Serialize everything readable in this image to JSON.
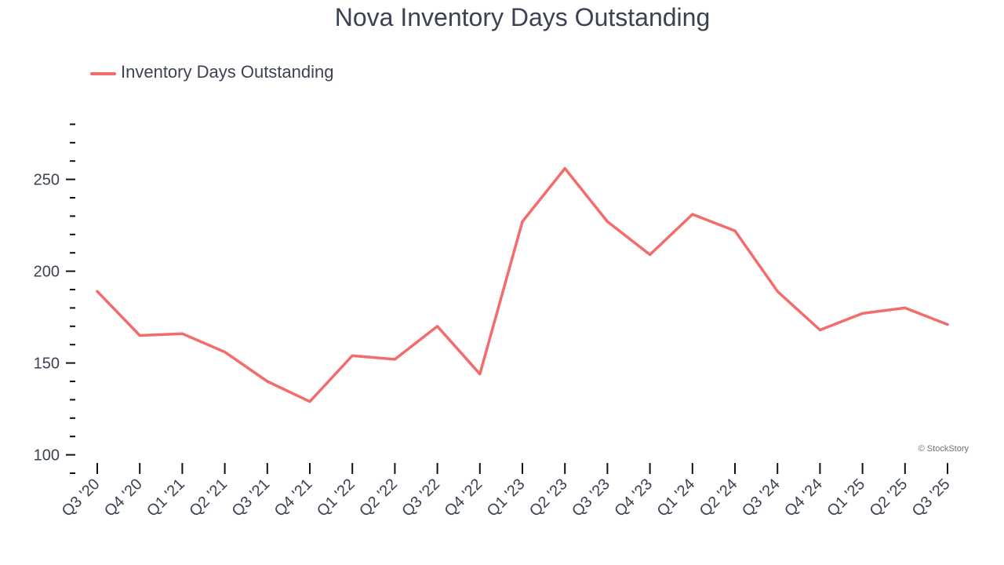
{
  "chart_data": {
    "type": "line",
    "title": "Nova Inventory Days Outstanding",
    "xlabel": "",
    "ylabel": "",
    "categories": [
      "Q3 '20",
      "Q4 '20",
      "Q1 '21",
      "Q2 '21",
      "Q3 '21",
      "Q4 '21",
      "Q1 '22",
      "Q2 '22",
      "Q3 '22",
      "Q4 '22",
      "Q1 '23",
      "Q2 '23",
      "Q3 '23",
      "Q4 '23",
      "Q1 '24",
      "Q2 '24",
      "Q3 '24",
      "Q4 '24",
      "Q1 '25",
      "Q2 '25",
      "Q3 '25"
    ],
    "series": [
      {
        "name": "Inventory Days Outstanding",
        "color": "#f36b6b",
        "values": [
          189,
          165,
          166,
          156,
          140,
          129,
          154,
          152,
          170,
          144,
          227,
          256,
          227,
          209,
          231,
          222,
          189,
          168,
          177,
          180,
          171
        ]
      }
    ],
    "ylim": [
      90,
      290
    ],
    "yticks": [
      "100",
      "150",
      "200",
      "250"
    ],
    "legend_position": "top-left",
    "grid": false
  },
  "credit": "© StockStory"
}
